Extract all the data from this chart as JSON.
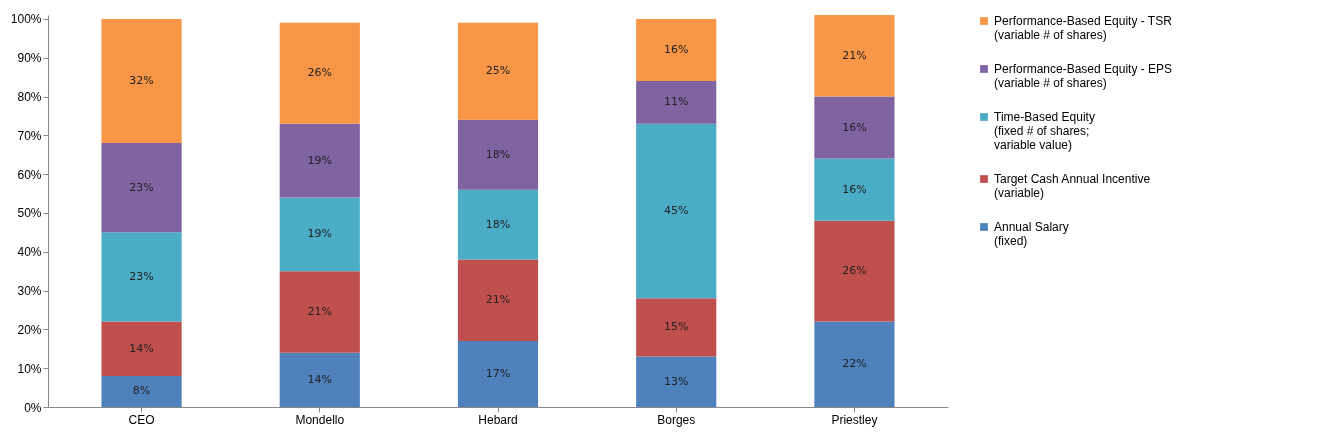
{
  "chart_data": {
    "type": "bar",
    "stacked": true,
    "categories": [
      "CEO",
      "Mondello",
      "Hebard",
      "Borges",
      "Priestley"
    ],
    "series": [
      {
        "name": "Annual Salary\n(fixed)",
        "color": "#4f81bd",
        "values": [
          8,
          14,
          17,
          13,
          22
        ],
        "value_labels": [
          "8%",
          "14%",
          "17%",
          "13%",
          "22%"
        ]
      },
      {
        "name": "Target Cash Annual Incentive\n(variable)",
        "color": "#c0504d",
        "values": [
          14,
          21,
          21,
          15,
          26
        ],
        "value_labels": [
          "14%",
          "21%",
          "21%",
          "15%",
          "26%"
        ]
      },
      {
        "name": "Time-Based Equity\n(fixed # of shares;\nvariable value)",
        "color": "#4bacc6",
        "values": [
          23,
          19,
          18,
          45,
          16
        ],
        "value_labels": [
          "23%",
          "19%",
          "18%",
          "45%",
          "16%"
        ]
      },
      {
        "name": "Performance-Based Equity - EPS\n(variable # of shares)",
        "color": "#8064a2",
        "values": [
          23,
          19,
          18,
          11,
          16
        ],
        "value_labels": [
          "23%",
          "19%",
          "18%",
          "11%",
          "16%"
        ]
      },
      {
        "name": "Performance-Based Equity - TSR\n(variable # of shares)",
        "color": "#f79646",
        "values": [
          32,
          26,
          25,
          16,
          21
        ],
        "value_labels": [
          "32%",
          "26%",
          "25%",
          "16%",
          "21%"
        ]
      }
    ],
    "ylim": [
      0,
      101
    ],
    "yticks": [
      {
        "value": 0,
        "label": "0%"
      },
      {
        "value": 10,
        "label": "10%"
      },
      {
        "value": 20,
        "label": "20%"
      },
      {
        "value": 30,
        "label": "30%"
      },
      {
        "value": 40,
        "label": "40%"
      },
      {
        "value": 50,
        "label": "50%"
      },
      {
        "value": 60,
        "label": "60%"
      },
      {
        "value": 70,
        "label": "70%"
      },
      {
        "value": 80,
        "label": "80%"
      },
      {
        "value": 90,
        "label": "90%"
      },
      {
        "value": 100,
        "label": "100%"
      }
    ],
    "grid": false,
    "legend": "right"
  }
}
